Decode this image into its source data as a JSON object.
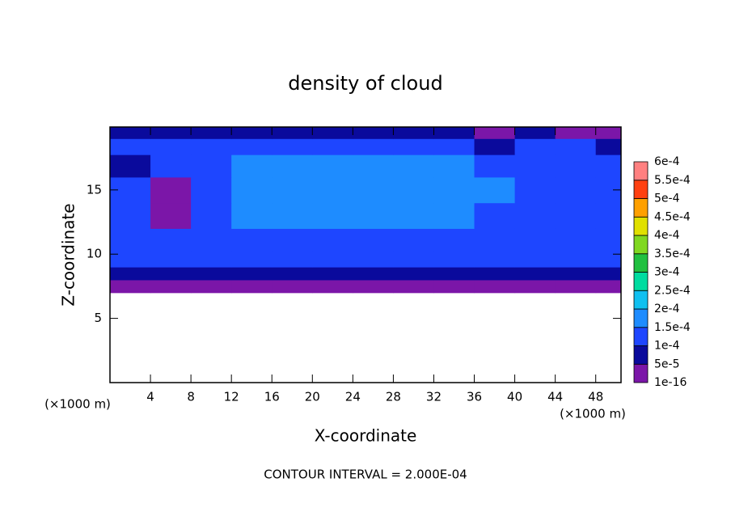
{
  "chart_data": {
    "type": "contour",
    "title": "density of cloud",
    "x_label": "X-coordinate",
    "y_label": "Z-coordinate",
    "x_unit": "(×1000 m)",
    "y_unit": "(×1000 m)",
    "annotation": "CONTOUR INTERVAL = 2.000E-04",
    "xlim": [
      0,
      50.5
    ],
    "ylim": [
      0,
      19.9
    ],
    "xticks": [
      4,
      8,
      12,
      16,
      20,
      24,
      28,
      32,
      36,
      40,
      44,
      48
    ],
    "yticks": [
      5,
      10,
      15
    ],
    "x": [
      2,
      6,
      10,
      14,
      18,
      22,
      26,
      30,
      34,
      38,
      42,
      46,
      50
    ],
    "y": [
      7.5,
      8.5,
      9.5,
      11,
      13,
      15,
      17,
      18.5,
      19.5
    ],
    "values": [
      [
        3e-05,
        3e-05,
        3e-05,
        3e-05,
        3e-05,
        3e-05,
        3e-05,
        3e-05,
        3e-05,
        3e-05,
        3e-05,
        3e-05,
        3e-05
      ],
      [
        7e-05,
        7e-05,
        7e-05,
        7e-05,
        7e-05,
        7e-05,
        7e-05,
        7e-05,
        7e-05,
        7e-05,
        7e-05,
        7e-05,
        7e-05
      ],
      [
        0.00011,
        0.00011,
        0.00011,
        0.00011,
        0.00011,
        0.00011,
        0.00011,
        0.00011,
        0.00011,
        0.00011,
        0.00011,
        0.00011,
        0.00011
      ],
      [
        0.00012,
        0.00012,
        0.00013,
        0.00013,
        0.00013,
        0.00013,
        0.00013,
        0.00013,
        0.00013,
        0.00013,
        0.00012,
        0.00012,
        0.00012
      ],
      [
        0.00012,
        3e-05,
        0.00013,
        0.00016,
        0.00015,
        0.00016,
        0.00016,
        0.00015,
        0.00015,
        0.00014,
        0.00013,
        0.00013,
        0.00012
      ],
      [
        0.00012,
        4e-05,
        0.00013,
        0.00015,
        0.00016,
        0.00016,
        0.00017,
        0.00016,
        0.00016,
        0.00015,
        0.00014,
        0.00014,
        0.00013
      ],
      [
        6e-05,
        0.00012,
        0.00014,
        0.00016,
        0.00017,
        0.00017,
        0.00016,
        0.00016,
        0.00015,
        0.00013,
        0.00013,
        0.00013,
        0.00012
      ],
      [
        0.00011,
        0.00011,
        0.00012,
        0.00012,
        0.00013,
        0.00012,
        0.00012,
        0.00012,
        0.00011,
        8e-05,
        0.0001,
        0.0001,
        9e-05
      ],
      [
        8e-05,
        9e-05,
        9e-05,
        9e-05,
        9e-05,
        9e-05,
        9e-05,
        8e-05,
        6e-05,
        3e-05,
        8e-05,
        4e-05,
        3e-05
      ]
    ],
    "colorbar": {
      "ticks": [
        1e-16,
        {
          "value": 5e-05,
          "label": "5e-5"
        },
        {
          "value": 0.0001,
          "label": "1e-4"
        },
        {
          "value": 0.00015,
          "label": "1.5e-4"
        },
        {
          "value": 0.0002,
          "label": "2e-4"
        },
        {
          "value": 0.00025,
          "label": "2.5e-4"
        },
        {
          "value": 0.0003,
          "label": "3e-4"
        },
        {
          "value": 0.00035,
          "label": "3.5e-4"
        },
        {
          "value": 0.0004,
          "label": "4e-4"
        },
        {
          "value": 0.00045,
          "label": "4.5e-4"
        },
        {
          "value": 0.0005,
          "label": "5e-4"
        },
        {
          "value": 0.00055,
          "label": "5.5e-4"
        },
        {
          "value": 0.0006,
          "label": "6e-4"
        }
      ],
      "colors": [
        "#7b16a8",
        "#0a0a9c",
        "#1e46ff",
        "#1e8cff",
        "#10c0f0",
        "#00dca0",
        "#20c040",
        "#80d820",
        "#e0e000",
        "#ffa000",
        "#ff4010",
        "#ff8080"
      ]
    }
  }
}
